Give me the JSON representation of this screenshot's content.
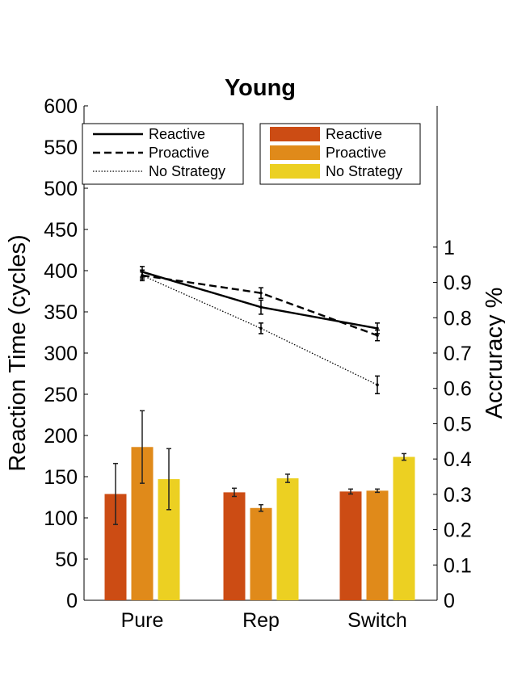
{
  "chart_data": {
    "type": "bar",
    "title": "Young",
    "categories": [
      "Pure",
      "Rep",
      "Switch"
    ],
    "ylabel": "Reaction Time (cycles)",
    "ylim": [
      0,
      600
    ],
    "yticks": [
      0,
      50,
      100,
      150,
      200,
      250,
      300,
      350,
      400,
      450,
      500,
      550,
      600
    ],
    "y2label": "Accruracy %",
    "y2lim": [
      0,
      1.4
    ],
    "y2ticks": [
      0,
      0.1,
      0.2,
      0.3,
      0.4,
      0.5,
      0.6,
      0.7,
      0.8,
      0.9,
      1
    ],
    "bar_series": [
      {
        "name": "Reactive",
        "color": "#cc4c14",
        "values": [
          129,
          131,
          132
        ],
        "errors": [
          37,
          5,
          3
        ]
      },
      {
        "name": "Proactive",
        "color": "#e08a1a",
        "values": [
          186,
          112,
          133
        ],
        "errors": [
          44,
          4,
          2
        ]
      },
      {
        "name": "No Strategy",
        "color": "#ecd022",
        "values": [
          147,
          148,
          174
        ],
        "errors": [
          37,
          5,
          4
        ]
      }
    ],
    "line_series": [
      {
        "name": "Reactive",
        "style": "solid",
        "values": [
          0.93,
          0.83,
          0.77
        ],
        "errors": [
          0.015,
          0.02,
          0.015
        ]
      },
      {
        "name": "Proactive",
        "style": "dashed",
        "values": [
          0.92,
          0.87,
          0.75
        ],
        "errors": [
          0.015,
          0.015,
          0.015
        ]
      },
      {
        "name": "No Strategy",
        "style": "dotted",
        "values": [
          0.92,
          0.77,
          0.61
        ],
        "errors": [
          0.01,
          0.015,
          0.025
        ]
      }
    ],
    "legend_lines_placement": "top-left",
    "legend_bars_placement": "top-right",
    "grid": false
  }
}
